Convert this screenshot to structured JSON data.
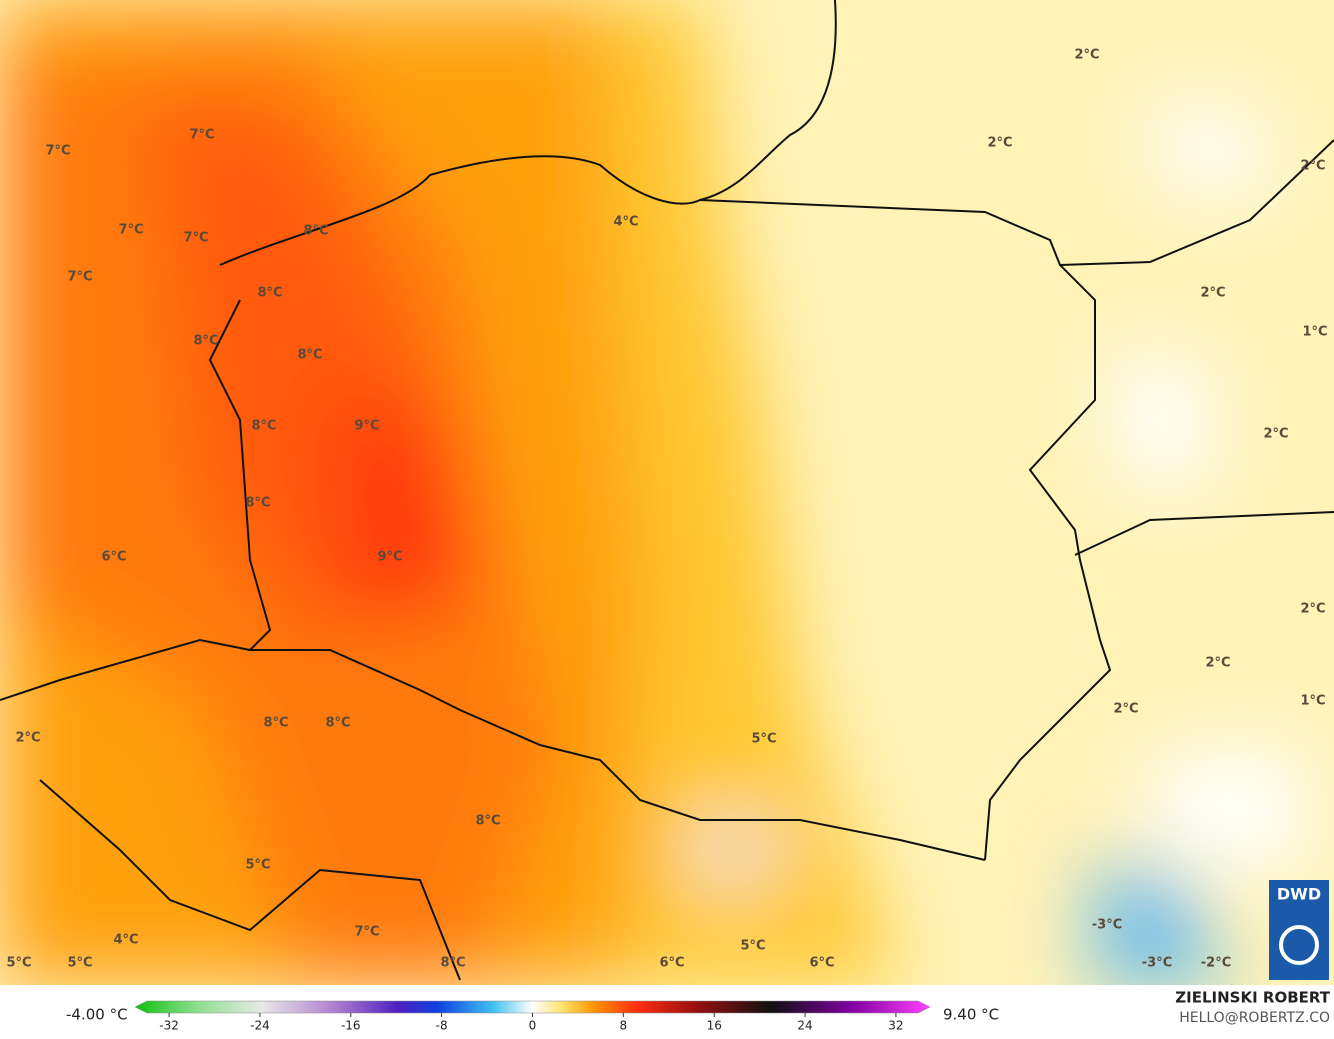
{
  "map": {
    "labels": [
      "2°C",
      "7°C",
      "7°C",
      "2°C",
      "2°C",
      "4°C",
      "7°C",
      "7°C",
      "8°C",
      "7°C",
      "8°C",
      "2°C",
      "8°C",
      "1°C",
      "8°C",
      "8°C",
      "9°C",
      "2°C",
      "8°C",
      "9°C",
      "6°C",
      "2°C",
      "2°C",
      "1°C",
      "2°C",
      "8°C",
      "8°C",
      "2°C",
      "5°C",
      "8°C",
      "5°C",
      "7°C",
      "-3°C",
      "4°C",
      "5°C",
      "-3°C",
      "-2°C",
      "5°C",
      "5°C",
      "8°C",
      "6°C",
      "6°C"
    ],
    "logo": "DWD"
  },
  "colorbar": {
    "min_label": "-4.00 °C",
    "max_label": "9.40 °C",
    "range": [
      -35,
      35
    ],
    "ticks": [
      -32,
      -24,
      -16,
      -8,
      0,
      8,
      16,
      24,
      32
    ]
  },
  "credit": {
    "name": "ZIELINSKI ROBERT",
    "email": "HELLO@ROBERTZ.CO"
  }
}
